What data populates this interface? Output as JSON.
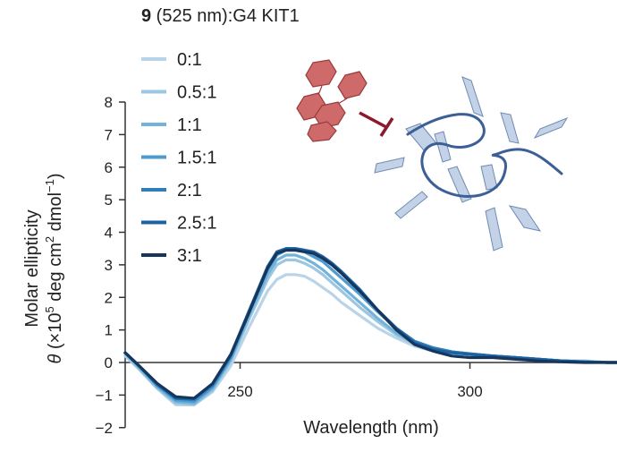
{
  "chart_data": {
    "type": "line",
    "title_bold": "9",
    "title_rest": " (525 nm):G4 KIT1",
    "xlabel": "Wavelength (nm)",
    "ylabel_line1": "Molar ellipticity",
    "ylabel_theta": "θ",
    "ylabel_pre": " (×10",
    "ylabel_sup1": "5",
    "ylabel_mid": " deg cm",
    "ylabel_sup2": "2",
    "ylabel_dmol": " dmol",
    "ylabel_sup3": "−1",
    "ylabel_end": ")",
    "xlim": [
      225,
      332
    ],
    "ylim": [
      -2,
      8
    ],
    "x_ticks": [
      250,
      300
    ],
    "x_tick_labels": [
      "250",
      "300"
    ],
    "y_ticks": [
      8,
      7,
      6,
      5,
      4,
      3,
      2,
      1,
      0,
      -1,
      -2
    ],
    "y_tick_labels": [
      "8",
      "7",
      "6",
      "5",
      "4",
      "3",
      "2",
      "1",
      "0",
      "−1",
      "−2"
    ],
    "legend_position": "top-left",
    "series": [
      {
        "name": "0:1",
        "color": "#b9d4e8",
        "x": [
          225,
          228,
          232,
          236,
          240,
          244,
          248,
          252,
          256,
          258,
          260,
          262,
          264,
          266,
          268,
          270,
          272,
          276,
          280,
          284,
          288,
          292,
          296,
          300,
          305,
          310,
          315,
          320,
          325,
          330,
          332
        ],
        "y": [
          0.2,
          -0.2,
          -0.8,
          -1.3,
          -1.3,
          -0.9,
          -0.1,
          1.1,
          2.2,
          2.55,
          2.7,
          2.7,
          2.65,
          2.5,
          2.3,
          2.1,
          1.85,
          1.45,
          1.05,
          0.75,
          0.5,
          0.35,
          0.3,
          0.25,
          0.2,
          0.15,
          0.1,
          0.05,
          0.05,
          0.0,
          0.0
        ]
      },
      {
        "name": "0.5:1",
        "color": "#9cc7e2",
        "x": [
          225,
          228,
          232,
          236,
          240,
          244,
          248,
          252,
          256,
          258,
          260,
          262,
          264,
          266,
          268,
          270,
          272,
          276,
          280,
          284,
          288,
          292,
          296,
          300,
          305,
          310,
          315,
          320,
          325,
          330,
          332
        ],
        "y": [
          0.25,
          -0.2,
          -0.8,
          -1.25,
          -1.3,
          -0.85,
          0.05,
          1.35,
          2.55,
          3.0,
          3.15,
          3.15,
          3.05,
          2.9,
          2.7,
          2.45,
          2.2,
          1.7,
          1.25,
          0.85,
          0.55,
          0.4,
          0.3,
          0.25,
          0.2,
          0.15,
          0.1,
          0.05,
          0.05,
          0.0,
          0.0
        ]
      },
      {
        "name": "1:1",
        "color": "#74b3d9",
        "x": [
          225,
          228,
          232,
          236,
          240,
          244,
          248,
          252,
          256,
          258,
          260,
          262,
          264,
          266,
          268,
          270,
          272,
          276,
          280,
          284,
          288,
          292,
          296,
          300,
          305,
          310,
          315,
          320,
          325,
          330,
          332
        ],
        "y": [
          0.3,
          -0.15,
          -0.75,
          -1.2,
          -1.25,
          -0.8,
          0.1,
          1.45,
          2.7,
          3.15,
          3.3,
          3.3,
          3.2,
          3.05,
          2.85,
          2.6,
          2.35,
          1.85,
          1.35,
          0.9,
          0.6,
          0.42,
          0.32,
          0.25,
          0.2,
          0.15,
          0.1,
          0.05,
          0.02,
          0.0,
          0.0
        ]
      },
      {
        "name": "1.5:1",
        "color": "#4f9bcd",
        "x": [
          225,
          228,
          232,
          236,
          240,
          244,
          248,
          252,
          256,
          258,
          260,
          262,
          264,
          266,
          268,
          270,
          272,
          276,
          280,
          284,
          288,
          292,
          296,
          300,
          305,
          310,
          315,
          320,
          325,
          330,
          332
        ],
        "y": [
          0.3,
          -0.1,
          -0.7,
          -1.15,
          -1.2,
          -0.75,
          0.15,
          1.55,
          2.85,
          3.3,
          3.45,
          3.45,
          3.4,
          3.25,
          3.1,
          2.85,
          2.6,
          2.1,
          1.55,
          1.05,
          0.65,
          0.45,
          0.33,
          0.27,
          0.2,
          0.15,
          0.1,
          0.05,
          0.02,
          0.0,
          0.0
        ]
      },
      {
        "name": "2:1",
        "color": "#2d7ebb",
        "x": [
          225,
          228,
          232,
          236,
          240,
          244,
          248,
          252,
          256,
          258,
          260,
          262,
          264,
          266,
          268,
          270,
          272,
          276,
          280,
          284,
          288,
          292,
          296,
          300,
          305,
          310,
          315,
          320,
          325,
          330,
          332
        ],
        "y": [
          0.3,
          -0.1,
          -0.7,
          -1.1,
          -1.15,
          -0.7,
          0.2,
          1.6,
          2.9,
          3.35,
          3.5,
          3.5,
          3.45,
          3.35,
          3.2,
          3.0,
          2.75,
          2.2,
          1.6,
          1.05,
          0.65,
          0.45,
          0.33,
          0.27,
          0.2,
          0.15,
          0.1,
          0.05,
          0.02,
          0.0,
          0.0
        ]
      },
      {
        "name": "2.5:1",
        "color": "#1c62a0",
        "x": [
          225,
          228,
          232,
          236,
          240,
          244,
          248,
          252,
          256,
          258,
          260,
          262,
          264,
          266,
          268,
          270,
          272,
          276,
          280,
          284,
          288,
          292,
          296,
          300,
          305,
          310,
          315,
          320,
          325,
          330,
          332
        ],
        "y": [
          0.3,
          -0.1,
          -0.65,
          -1.1,
          -1.1,
          -0.65,
          0.25,
          1.6,
          2.95,
          3.4,
          3.5,
          3.5,
          3.45,
          3.4,
          3.25,
          3.05,
          2.8,
          2.25,
          1.6,
          1.05,
          0.6,
          0.4,
          0.3,
          0.25,
          0.2,
          0.15,
          0.1,
          0.05,
          0.02,
          0.0,
          0.0
        ]
      },
      {
        "name": "3:1",
        "color": "#16365e",
        "x": [
          225,
          228,
          232,
          236,
          240,
          244,
          248,
          252,
          256,
          258,
          260,
          262,
          264,
          266,
          268,
          270,
          272,
          276,
          280,
          284,
          288,
          292,
          296,
          300,
          305,
          310,
          315,
          320,
          325,
          330,
          332
        ],
        "y": [
          0.3,
          -0.1,
          -0.65,
          -1.05,
          -1.1,
          -0.65,
          0.25,
          1.55,
          2.9,
          3.35,
          3.45,
          3.45,
          3.4,
          3.35,
          3.2,
          3.0,
          2.75,
          2.2,
          1.6,
          1.0,
          0.55,
          0.35,
          0.2,
          0.15,
          0.15,
          0.1,
          0.05,
          0.02,
          0.0,
          0.0,
          0.0
        ]
      }
    ]
  },
  "illustration": {
    "hexagon_color": "#cf6a6a",
    "inhibitor_color": "#8b1a2e",
    "strand_color": "#3c5f97",
    "blade_color": "#c3d2e6"
  }
}
